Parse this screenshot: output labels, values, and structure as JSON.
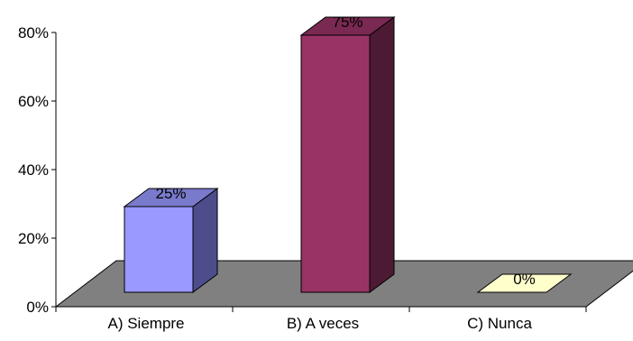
{
  "chart_data": {
    "type": "bar",
    "style": "3d-column",
    "categories": [
      "A) Siempre",
      "B) A veces",
      "C) Nunca"
    ],
    "values": [
      25,
      75,
      0
    ],
    "data_labels": [
      "25%",
      "75%",
      "0%"
    ],
    "y_ticks": [
      0,
      20,
      40,
      60,
      80
    ],
    "y_tick_labels": [
      "0%",
      "20%",
      "40%",
      "60%",
      "80%"
    ],
    "ylim": [
      0,
      80
    ],
    "grid": false,
    "legend": "none",
    "title": "",
    "xlabel": "",
    "ylabel": "",
    "colors": {
      "bars": [
        "#9999ff",
        "#993366",
        "#ffffcc"
      ],
      "bar_sides": [
        "#4d4d8c",
        "#4d1a33",
        "#b3b38f"
      ],
      "bar_tops": [
        "#7a7acc",
        "#7a2952",
        "#cccca3"
      ],
      "floor": "#808080",
      "axis": "#000000"
    }
  }
}
